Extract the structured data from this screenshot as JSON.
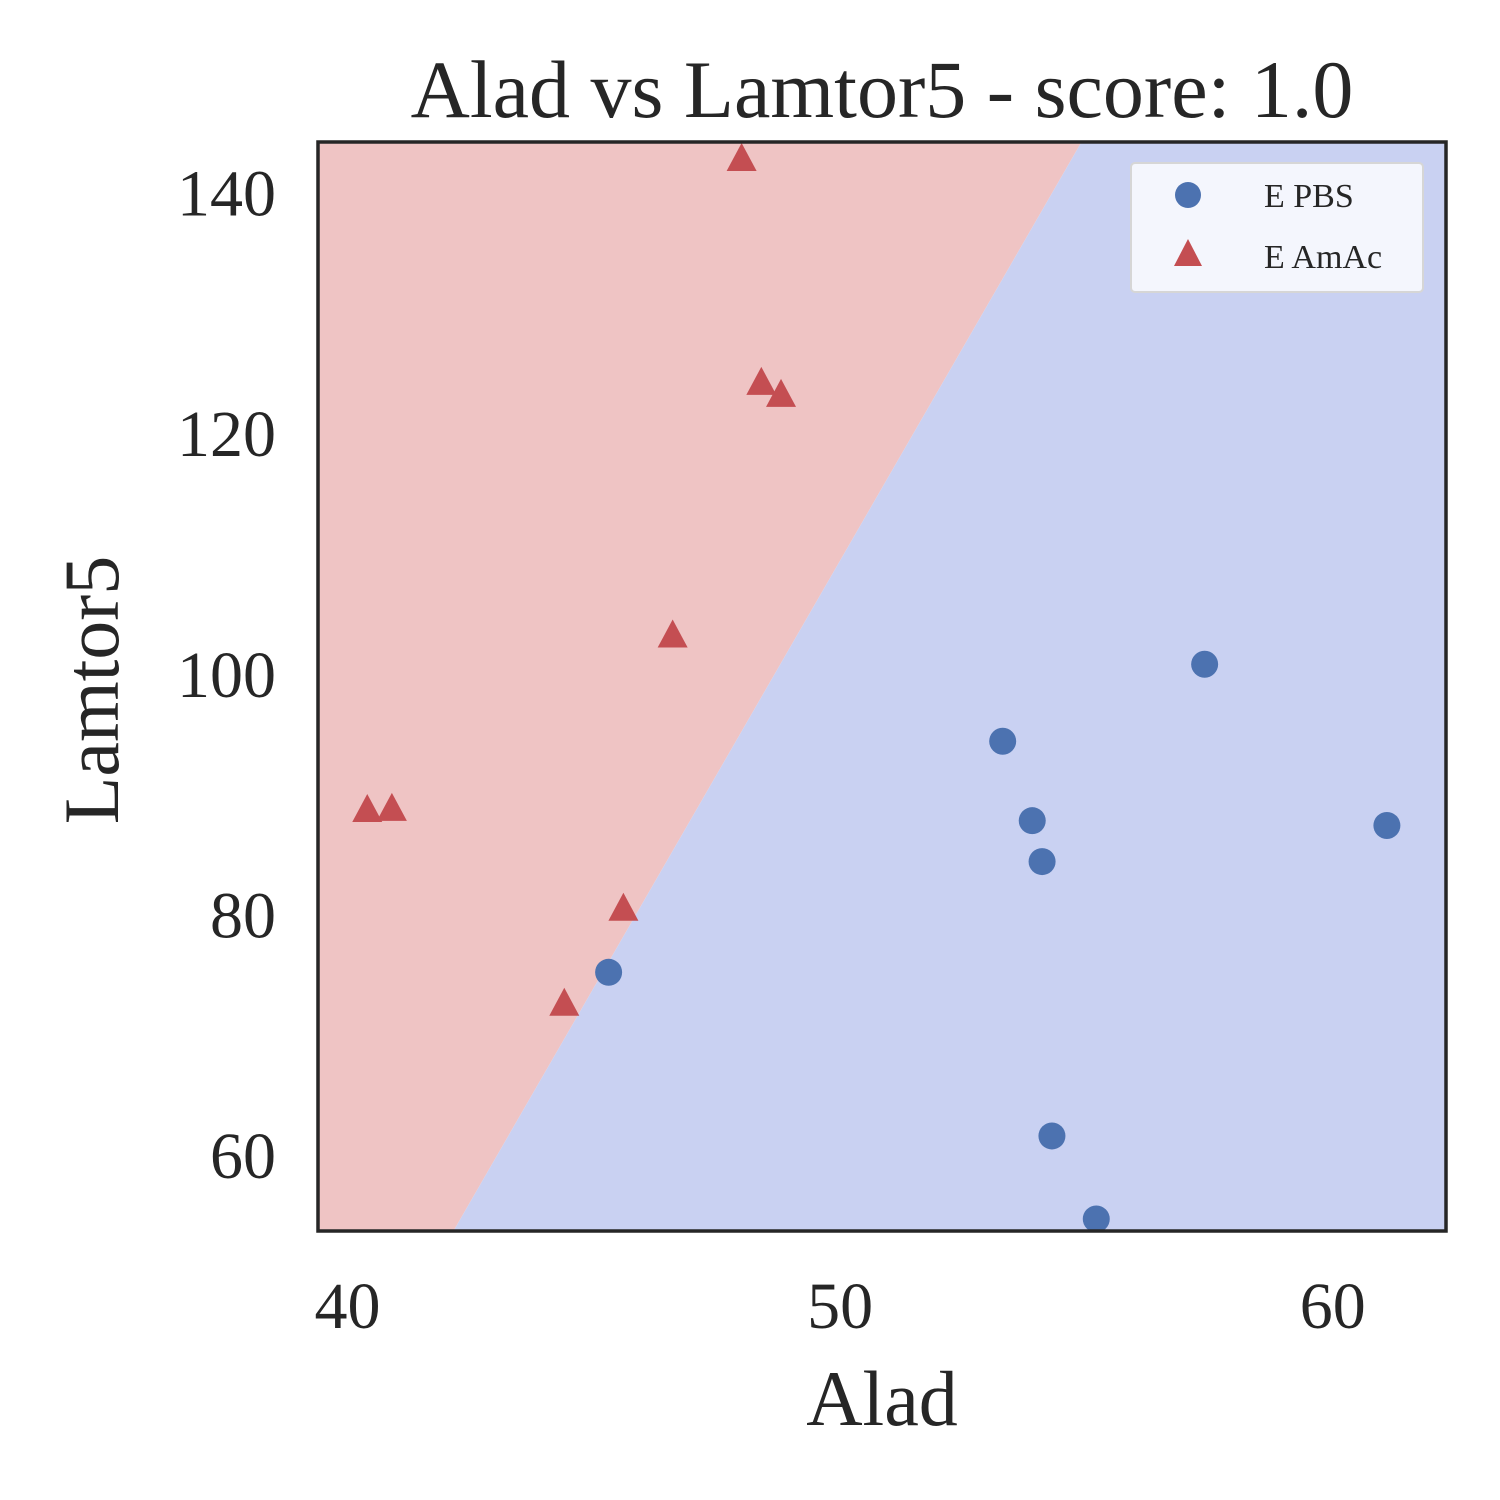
{
  "chart_data": {
    "type": "scatter",
    "title": "Alad vs Lamtor5 - score: 1.0",
    "xlabel": "Alad",
    "ylabel": "Lamtor5",
    "xlim": [
      39.4,
      62.3
    ],
    "ylim": [
      53.7,
      144.2
    ],
    "xticks": [
      40,
      50,
      60
    ],
    "yticks": [
      60,
      80,
      100,
      120,
      140
    ],
    "grid": false,
    "legend_position": "top-right",
    "decision_boundary": {
      "line": [
        [
          42.15,
          53.7
        ],
        [
          54.9,
          144.2
        ]
      ],
      "region_left": "E AmAc",
      "region_right": "E PBS",
      "region_left_color": "#efc4c4",
      "region_right_color": "#c9d1f2"
    },
    "series": [
      {
        "name": "E PBS",
        "marker": "circle",
        "color": "#4c72b0",
        "points": [
          [
            45.3,
            75.2
          ],
          [
            53.3,
            94.4
          ],
          [
            53.9,
            87.8
          ],
          [
            54.1,
            84.4
          ],
          [
            54.3,
            61.6
          ],
          [
            55.2,
            54.7
          ],
          [
            57.4,
            100.8
          ],
          [
            61.1,
            87.4
          ]
        ]
      },
      {
        "name": "E AmAc",
        "marker": "triangle",
        "color": "#c44e52",
        "points": [
          [
            40.4,
            88.6
          ],
          [
            40.9,
            88.7
          ],
          [
            44.4,
            72.5
          ],
          [
            45.6,
            80.4
          ],
          [
            46.6,
            103.1
          ],
          [
            48.0,
            142.7
          ],
          [
            48.4,
            124.1
          ],
          [
            48.8,
            123.1
          ]
        ]
      }
    ]
  }
}
